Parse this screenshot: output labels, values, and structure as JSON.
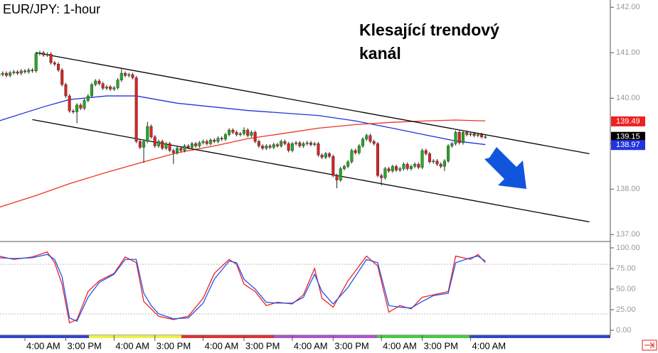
{
  "chart_data": [
    {
      "type": "candlestick",
      "title": "EUR/JPY: 1-hour",
      "annotation": "Klesající trendový kanál",
      "categories": [
        null,
        null,
        null,
        null,
        null,
        null,
        null,
        "4:00 AM",
        null,
        null,
        null,
        null,
        null,
        null,
        null,
        null,
        null,
        null,
        "3:00 PM",
        null,
        null,
        null,
        null,
        null,
        null,
        null,
        null,
        null,
        null,
        null,
        null,
        "4:00 AM",
        null,
        null,
        null,
        null,
        null,
        null,
        null,
        null,
        null,
        null,
        "3:00 PM",
        null,
        null,
        null,
        null,
        null,
        null,
        null,
        null,
        null,
        null,
        null,
        null,
        "4:00 AM",
        null,
        null,
        null,
        null,
        null,
        null,
        null,
        null,
        null,
        null,
        "3:00 PM",
        null,
        null,
        null,
        null,
        null,
        null,
        null,
        null,
        null,
        null,
        null,
        null,
        "4:00 AM",
        null,
        null,
        null,
        null,
        null,
        null,
        null,
        null,
        null,
        null,
        "3:00 PM",
        null,
        null,
        null,
        null,
        null,
        null,
        null,
        null,
        null,
        null,
        null,
        null,
        "4:00 AM",
        null,
        null,
        null,
        null,
        null,
        null,
        null,
        null,
        null,
        null,
        "3:00 PM",
        null,
        null,
        null,
        null,
        null,
        null,
        null,
        null,
        null,
        null,
        null,
        null,
        "4:00 AM",
        null,
        null,
        null,
        null
      ],
      "open": [
        140.5,
        140.52,
        140.55,
        140.5,
        140.56,
        140.58,
        140.55,
        140.6,
        140.58,
        140.62,
        140.6,
        140.98,
        141.0,
        140.95,
        140.97,
        140.78,
        140.75,
        140.62,
        140.3,
        140.05,
        139.72,
        139.7,
        139.85,
        139.78,
        139.95,
        140.05,
        140.3,
        140.38,
        140.32,
        140.22,
        140.25,
        140.2,
        140.23,
        140.4,
        140.55,
        140.5,
        140.52,
        140.45,
        139.05,
        138.92,
        139.05,
        139.38,
        139.15,
        138.95,
        139.05,
        138.9,
        139.0,
        138.85,
        138.8,
        138.9,
        138.85,
        138.95,
        138.92,
        139.0,
        138.95,
        139.02,
        139.05,
        139.0,
        139.08,
        139.05,
        139.12,
        139.1,
        139.2,
        139.3,
        139.25,
        139.2,
        139.22,
        139.3,
        139.18,
        139.25,
        139.05,
        138.95,
        138.9,
        138.95,
        138.92,
        138.98,
        138.95,
        139.05,
        139.0,
        138.85,
        139.0,
        139.02,
        138.95,
        139.0,
        139.02,
        138.98,
        139.0,
        138.75,
        138.7,
        138.78,
        138.72,
        138.3,
        138.2,
        138.45,
        138.5,
        138.6,
        138.85,
        138.8,
        138.95,
        139.1,
        139.18,
        139.05,
        139.0,
        138.3,
        138.25,
        138.45,
        138.4,
        138.5,
        138.42,
        138.45,
        138.55,
        138.45,
        138.5,
        138.55,
        138.48,
        138.85,
        138.78,
        138.6,
        138.62,
        138.55,
        138.5,
        138.62,
        138.95,
        139.0,
        139.25,
        139.02,
        139.25,
        139.2,
        139.22,
        139.18,
        139.2,
        139.15
      ],
      "high": [
        140.56,
        140.59,
        140.59,
        140.6,
        140.62,
        140.62,
        140.64,
        140.64,
        140.66,
        140.66,
        141.02,
        141.04,
        141.04,
        141.01,
        141.01,
        140.82,
        140.79,
        140.66,
        140.34,
        140.09,
        139.76,
        139.89,
        139.89,
        139.99,
        140.09,
        140.34,
        140.42,
        140.42,
        140.36,
        140.29,
        140.29,
        140.27,
        140.44,
        140.64,
        140.59,
        140.56,
        140.56,
        140.49,
        139.09,
        139.09,
        139.48,
        139.42,
        139.19,
        139.09,
        139.09,
        139.04,
        139.04,
        138.89,
        138.94,
        138.94,
        138.99,
        138.99,
        139.04,
        139.04,
        139.06,
        139.09,
        139.09,
        139.12,
        139.12,
        139.16,
        139.16,
        139.24,
        139.34,
        139.34,
        139.29,
        139.26,
        139.36,
        139.34,
        139.29,
        139.29,
        139.09,
        138.99,
        138.99,
        138.99,
        139.02,
        139.02,
        139.09,
        139.09,
        139.04,
        139.04,
        139.06,
        139.06,
        139.04,
        139.06,
        139.06,
        139.04,
        139.04,
        138.79,
        138.82,
        138.82,
        138.76,
        138.34,
        138.49,
        138.54,
        138.64,
        138.89,
        138.89,
        138.99,
        139.14,
        139.22,
        139.22,
        139.09,
        139.04,
        138.34,
        138.49,
        138.49,
        138.54,
        138.54,
        138.49,
        138.59,
        138.59,
        138.54,
        138.59,
        138.59,
        138.89,
        138.89,
        138.82,
        138.66,
        138.66,
        138.59,
        138.66,
        138.99,
        139.04,
        139.29,
        139.29,
        139.29,
        139.29,
        139.26,
        139.26,
        139.24,
        139.24,
        139.19
      ],
      "low": [
        140.46,
        140.48,
        140.46,
        140.46,
        140.52,
        140.51,
        140.51,
        140.54,
        140.54,
        140.56,
        140.56,
        140.94,
        140.91,
        140.91,
        140.74,
        140.71,
        140.58,
        140.26,
        140.01,
        139.68,
        139.66,
        139.45,
        139.74,
        139.74,
        139.91,
        140.01,
        140.26,
        140.28,
        140.18,
        140.18,
        140.16,
        140.16,
        140.19,
        140.36,
        140.46,
        140.46,
        140.41,
        139.01,
        138.88,
        138.58,
        139.01,
        139.11,
        138.91,
        138.91,
        138.86,
        138.86,
        138.81,
        138.55,
        138.76,
        138.81,
        138.81,
        138.88,
        138.88,
        138.91,
        138.91,
        138.98,
        138.96,
        138.96,
        139.01,
        139.01,
        139.06,
        139.06,
        139.16,
        139.21,
        139.16,
        139.16,
        139.18,
        139.14,
        139.14,
        139.01,
        138.91,
        138.86,
        138.86,
        138.88,
        138.88,
        138.91,
        138.91,
        138.96,
        138.81,
        138.81,
        138.96,
        138.91,
        138.91,
        138.96,
        138.94,
        138.94,
        138.71,
        138.66,
        138.66,
        138.68,
        138.26,
        138.02,
        138.16,
        138.41,
        138.46,
        138.56,
        138.76,
        138.76,
        138.91,
        139.06,
        139.01,
        138.96,
        138.26,
        138.08,
        138.21,
        138.36,
        138.36,
        138.38,
        138.38,
        138.41,
        138.41,
        138.41,
        138.46,
        138.44,
        138.44,
        138.74,
        138.56,
        138.56,
        138.51,
        138.46,
        138.4,
        138.58,
        138.91,
        138.96,
        138.98,
        138.98,
        139.16,
        139.16,
        139.14,
        139.14,
        139.11,
        139.11
      ],
      "close": [
        140.52,
        140.55,
        140.5,
        140.56,
        140.58,
        140.55,
        140.6,
        140.58,
        140.62,
        140.6,
        140.98,
        141.0,
        140.95,
        140.97,
        140.78,
        140.75,
        140.62,
        140.3,
        140.05,
        139.72,
        139.7,
        139.85,
        139.78,
        139.95,
        140.05,
        140.3,
        140.38,
        140.32,
        140.22,
        140.25,
        140.2,
        140.23,
        140.4,
        140.55,
        140.5,
        140.52,
        140.45,
        139.05,
        138.92,
        139.05,
        139.38,
        139.15,
        138.95,
        139.05,
        138.9,
        139.0,
        138.85,
        138.8,
        138.9,
        138.85,
        138.95,
        138.92,
        139.0,
        138.95,
        139.02,
        139.05,
        139.0,
        139.08,
        139.05,
        139.12,
        139.1,
        139.2,
        139.3,
        139.25,
        139.2,
        139.22,
        139.3,
        139.18,
        139.25,
        139.05,
        138.95,
        138.9,
        138.95,
        138.92,
        138.98,
        138.95,
        139.05,
        139.0,
        138.85,
        139.0,
        139.02,
        138.95,
        139.0,
        139.02,
        138.98,
        139.0,
        138.75,
        138.7,
        138.78,
        138.72,
        138.3,
        138.2,
        138.45,
        138.5,
        138.6,
        138.85,
        138.8,
        138.95,
        139.1,
        139.18,
        139.05,
        139.0,
        138.3,
        138.25,
        138.45,
        138.4,
        138.5,
        138.42,
        138.45,
        138.55,
        138.45,
        138.5,
        138.55,
        138.48,
        138.85,
        138.78,
        138.6,
        138.62,
        138.55,
        138.5,
        138.62,
        138.95,
        139.0,
        139.25,
        139.02,
        139.25,
        139.2,
        139.22,
        139.18,
        139.2,
        139.15,
        139.15
      ],
      "up_color": "#22aa22",
      "down_color": "#dd2222",
      "lines": [
        {
          "color": "#2233dd",
          "x": [
            0,
            12,
            19,
            29,
            37,
            48,
            67,
            86,
            96,
            106,
            115,
            123,
            131
          ],
          "values": [
            139.5,
            139.81,
            139.97,
            140.05,
            140.05,
            139.89,
            139.73,
            139.62,
            139.5,
            139.34,
            139.19,
            139.06,
            138.98
          ]
        },
        {
          "color": "#ee3322",
          "x": [
            0,
            10,
            19,
            29,
            39,
            48,
            58,
            67,
            77,
            86,
            96,
            106,
            115,
            123,
            131
          ],
          "values": [
            137.6,
            137.86,
            138.12,
            138.37,
            138.6,
            138.8,
            138.95,
            139.11,
            139.23,
            139.34,
            139.42,
            139.47,
            139.5,
            139.52,
            139.5
          ]
        },
        {
          "color": "#000000",
          "x": [
            10,
            159
          ],
          "values": [
            141.0,
            138.78
          ]
        },
        {
          "color": "#000000",
          "x": [
            9,
            159
          ],
          "values": [
            139.53,
            137.28
          ]
        }
      ],
      "price_tags": [
        {
          "value": 139.49,
          "color": "#ee2222"
        },
        {
          "value": 139.15,
          "color": "#000000"
        },
        {
          "value": 138.97,
          "color": "#2233dd"
        }
      ],
      "ylim": [
        136.88,
        142.16
      ],
      "yticks": [
        {
          "value": 137,
          "label": "137.00"
        },
        {
          "value": 138,
          "label": "138.00"
        },
        {
          "value": 139,
          "label": "139.00"
        },
        {
          "value": 140,
          "label": "140.00"
        },
        {
          "value": 141,
          "label": "141.00"
        },
        {
          "value": 142,
          "label": "142.00"
        }
      ]
    },
    {
      "type": "line",
      "levels": [
        20,
        80
      ],
      "series": [
        {
          "color": "#ee2222",
          "x": [
            0,
            4,
            9,
            13,
            15,
            17,
            19,
            21,
            24,
            27,
            31,
            34,
            37,
            39,
            41,
            43,
            47,
            51,
            55,
            58,
            62,
            64,
            66,
            69,
            72,
            75,
            79,
            82,
            85,
            87,
            90,
            94,
            99,
            102,
            105,
            108,
            111,
            114,
            117,
            121,
            123,
            127,
            129,
            131
          ],
          "values": [
            90,
            86,
            89,
            95,
            82,
            56,
            9,
            13,
            47,
            60,
            69,
            89,
            82,
            35,
            26,
            17,
            13,
            17,
            39,
            69,
            86,
            80,
            56,
            47,
            30,
            34,
            32,
            43,
            75,
            39,
            28,
            60,
            90,
            78,
            22,
            30,
            26,
            40,
            43,
            47,
            90,
            86,
            92,
            82
          ]
        },
        {
          "color": "#2255ee",
          "x": [
            0,
            4,
            9,
            13,
            15,
            17,
            19,
            21,
            24,
            27,
            31,
            34,
            37,
            39,
            41,
            43,
            47,
            51,
            55,
            58,
            62,
            64,
            66,
            69,
            72,
            75,
            79,
            82,
            85,
            87,
            90,
            94,
            99,
            102,
            105,
            108,
            111,
            114,
            117,
            121,
            123,
            127,
            129,
            131
          ],
          "values": [
            88,
            87,
            88,
            92,
            86,
            65,
            15,
            11,
            40,
            58,
            68,
            86,
            86,
            45,
            30,
            20,
            14,
            15,
            33,
            62,
            84,
            82,
            62,
            50,
            34,
            33,
            33,
            40,
            68,
            47,
            32,
            52,
            86,
            82,
            30,
            28,
            27,
            35,
            42,
            45,
            82,
            88,
            90,
            84
          ]
        }
      ],
      "ylim": [
        -6,
        106
      ],
      "yticks": [
        {
          "value": 0,
          "label": "0.00"
        },
        {
          "value": 25,
          "label": "25.00"
        },
        {
          "value": 50,
          "label": "50.00"
        },
        {
          "value": 75,
          "label": "75.00"
        },
        {
          "value": 100,
          "label": "100.00"
        }
      ]
    }
  ]
}
